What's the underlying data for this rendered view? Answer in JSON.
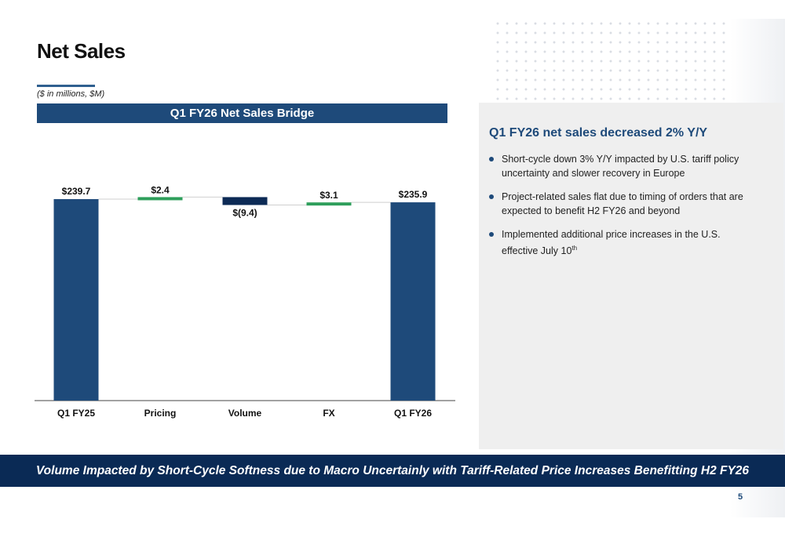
{
  "page": {
    "title": "Net Sales",
    "units_note": "($ in millions, $M)",
    "page_number": "5"
  },
  "chart_data": {
    "type": "bar",
    "subtype": "waterfall",
    "title": "Q1 FY26 Net Sales Bridge",
    "xlabel": "",
    "ylabel": "",
    "categories": [
      "Q1 FY25",
      "Pricing",
      "Volume",
      "FX",
      "Q1 FY26"
    ],
    "values": [
      239.7,
      2.4,
      -9.4,
      3.1,
      235.9
    ],
    "bar_kinds": [
      "total",
      "delta",
      "delta",
      "delta",
      "total"
    ],
    "data_labels": [
      "$239.7",
      "$2.4",
      "$(9.4)",
      "$3.1",
      "$235.9"
    ],
    "ylim": [
      0,
      260
    ],
    "grid": false,
    "legend": "none",
    "colors": {
      "total": "#1e4a7a",
      "increase": "#2e9e5b",
      "decrease": "#0c2a55"
    }
  },
  "panel": {
    "title": "Q1 FY26 net sales decreased 2% Y/Y",
    "bullets": [
      {
        "text": "Short-cycle down 3% Y/Y impacted by U.S. tariff policy uncertainty and slower recovery in Europe"
      },
      {
        "text": "Project-related sales flat due to timing of orders that are expected to benefit H2 FY26 and beyond"
      },
      {
        "text": "Implemented additional price increases in the U.S. effective July 10",
        "sup": "th"
      }
    ]
  },
  "footer": {
    "banner": "Volume Impacted by Short-Cycle Softness due to Macro Uncertainly with Tariff-Related Price Increases Benefitting H2 FY26"
  },
  "theme": {
    "navy": "#1e4a7a",
    "dark_navy": "#0a2a55",
    "panel_bg": "#efefef"
  }
}
